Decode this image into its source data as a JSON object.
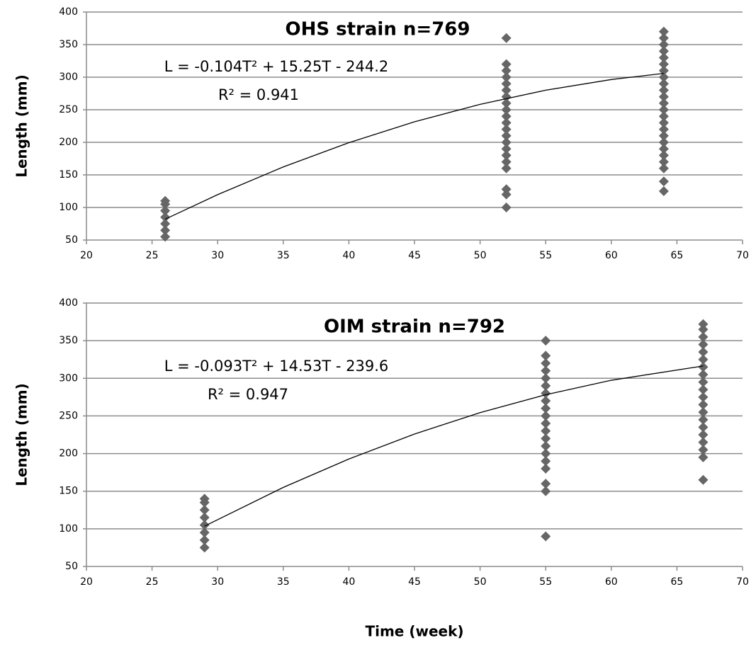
{
  "chart_data": [
    {
      "type": "scatter",
      "title": "OHS strain n=769",
      "ylabel": "Length (mm)",
      "annotations": [
        "L = -0.104T² + 15.25T - 244.2",
        "R² = 0.941"
      ],
      "xlim": [
        20,
        70
      ],
      "xticks": [
        20,
        25,
        30,
        35,
        40,
        45,
        50,
        55,
        60,
        65,
        70
      ],
      "ylim": [
        50,
        400
      ],
      "yticks": [
        50,
        100,
        150,
        200,
        250,
        300,
        350,
        400
      ],
      "grid": true,
      "series": [
        {
          "mode": "markers",
          "color": "#666666",
          "x": [
            26,
            26,
            26,
            26,
            26,
            26,
            26,
            52,
            52,
            52,
            52,
            52,
            52,
            52,
            52,
            52,
            52,
            52,
            52,
            52,
            52,
            52,
            52,
            52,
            52,
            52,
            52,
            52,
            64,
            64,
            64,
            64,
            64,
            64,
            64,
            64,
            64,
            64,
            64,
            64,
            64,
            64,
            64,
            64,
            64,
            64,
            64,
            64,
            64,
            64,
            64,
            64
          ],
          "values": [
            55,
            65,
            75,
            85,
            95,
            105,
            110,
            100,
            120,
            128,
            160,
            170,
            180,
            190,
            200,
            210,
            220,
            230,
            240,
            250,
            260,
            270,
            280,
            290,
            300,
            310,
            320,
            360,
            125,
            140,
            160,
            170,
            180,
            190,
            200,
            210,
            220,
            230,
            240,
            250,
            260,
            270,
            280,
            290,
            300,
            310,
            320,
            330,
            340,
            350,
            360,
            370
          ]
        },
        {
          "mode": "line",
          "color": "#000000",
          "x": [
            26,
            30,
            35,
            40,
            45,
            50,
            55,
            60,
            64
          ],
          "values": [
            82,
            119.7,
            162.2,
            199.4,
            231.5,
            258.3,
            280,
            296.4,
            305.8
          ]
        }
      ]
    },
    {
      "type": "scatter",
      "title": "OIM strain n=792",
      "ylabel": "Length (mm)",
      "xlabel": "Time (week)",
      "annotations": [
        "L = -0.093T² + 14.53T - 239.6",
        "R² = 0.947"
      ],
      "xlim": [
        20,
        70
      ],
      "xticks": [
        20,
        25,
        30,
        35,
        40,
        45,
        50,
        55,
        60,
        65,
        70
      ],
      "ylim": [
        50,
        400
      ],
      "yticks": [
        50,
        100,
        150,
        200,
        250,
        300,
        350,
        400
      ],
      "grid": true,
      "series": [
        {
          "mode": "markers",
          "color": "#666666",
          "x": [
            29,
            29,
            29,
            29,
            29,
            29,
            29,
            29,
            55,
            55,
            55,
            55,
            55,
            55,
            55,
            55,
            55,
            55,
            55,
            55,
            55,
            55,
            55,
            55,
            55,
            55,
            55,
            55,
            67,
            67,
            67,
            67,
            67,
            67,
            67,
            67,
            67,
            67,
            67,
            67,
            67,
            67,
            67,
            67,
            67,
            67,
            67,
            67
          ],
          "values": [
            75,
            85,
            95,
            105,
            115,
            125,
            135,
            140,
            90,
            150,
            160,
            180,
            190,
            200,
            210,
            220,
            230,
            240,
            250,
            260,
            270,
            280,
            290,
            300,
            310,
            320,
            330,
            350,
            165,
            195,
            205,
            215,
            225,
            235,
            245,
            255,
            265,
            275,
            285,
            295,
            305,
            315,
            325,
            335,
            345,
            355,
            365,
            372
          ]
        },
        {
          "mode": "line",
          "color": "#000000",
          "x": [
            29,
            35,
            40,
            45,
            50,
            55,
            60,
            67
          ],
          "values": [
            103.6,
            155,
            192.8,
            225.9,
            254.4,
            278.2,
            297.4,
            316.4
          ]
        }
      ]
    }
  ]
}
